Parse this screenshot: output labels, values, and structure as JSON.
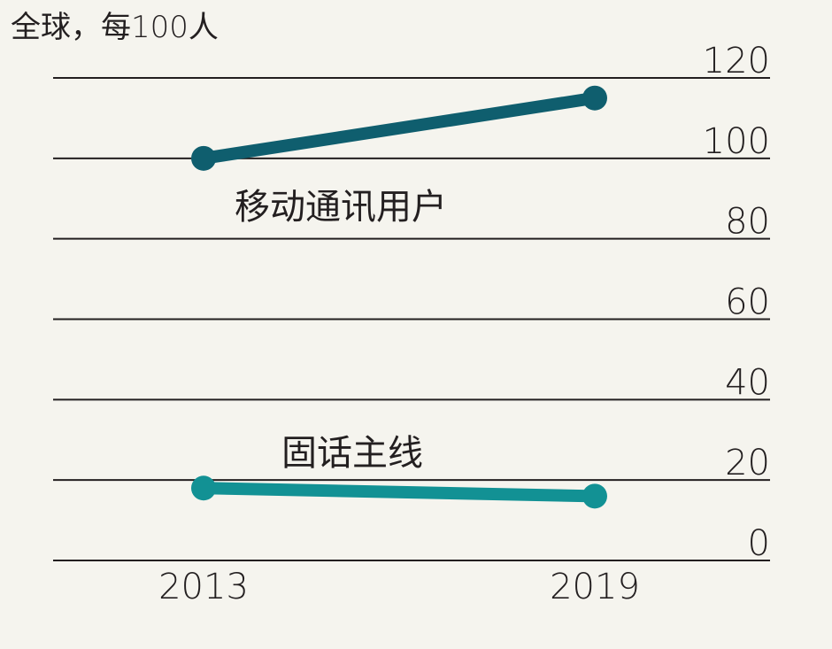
{
  "chart_data": {
    "type": "line",
    "unit_label": "全球，每100人",
    "categories": [
      "2013",
      "2019"
    ],
    "x": [
      2013,
      2019
    ],
    "ylim": [
      0,
      120
    ],
    "yticks": [
      0,
      20,
      40,
      60,
      80,
      100,
      120
    ],
    "grid": true,
    "series": [
      {
        "name": "移动通讯用户",
        "values": [
          100,
          115
        ],
        "color": "#0f5e6e"
      },
      {
        "name": "固话主线",
        "values": [
          18,
          16
        ],
        "color": "#129194"
      }
    ]
  }
}
